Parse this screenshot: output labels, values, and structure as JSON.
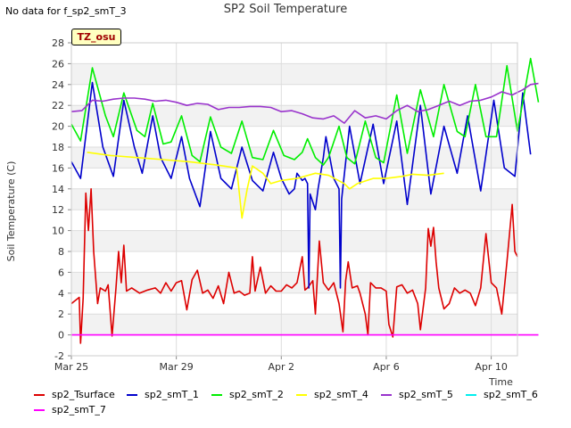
{
  "header": {
    "no_data_text": "No data for f_sp2_smT_3",
    "tz_badge": "TZ_osu"
  },
  "chart_data": {
    "type": "line",
    "title": "SP2 Soil Temperature",
    "xlabel": "Time",
    "ylabel": "Soil Temperature (C)",
    "ylim": [
      -2,
      28
    ],
    "yticks": [
      -2,
      0,
      2,
      4,
      6,
      8,
      10,
      12,
      14,
      16,
      18,
      20,
      22,
      24,
      26,
      28
    ],
    "xlim": [
      0,
      17
    ],
    "xticks": [
      {
        "x": 0,
        "label": "Mar 25"
      },
      {
        "x": 4,
        "label": "Mar 29"
      },
      {
        "x": 8,
        "label": "Apr 2"
      },
      {
        "x": 12,
        "label": "Apr 6"
      },
      {
        "x": 16,
        "label": "Apr 10"
      }
    ],
    "grid": true,
    "legend_position": "bottom",
    "series": [
      {
        "name": "sp2_Tsurface",
        "color": "#dd0000",
        "values": [
          [
            0.0,
            3.0
          ],
          [
            0.3,
            3.6
          ],
          [
            0.35,
            -0.8
          ],
          [
            0.45,
            3.5
          ],
          [
            0.55,
            13.6
          ],
          [
            0.65,
            10.0
          ],
          [
            0.75,
            14.0
          ],
          [
            0.85,
            8.0
          ],
          [
            1.0,
            3.0
          ],
          [
            1.1,
            4.5
          ],
          [
            1.3,
            4.2
          ],
          [
            1.4,
            4.8
          ],
          [
            1.55,
            -0.1
          ],
          [
            1.7,
            4.5
          ],
          [
            1.8,
            8.0
          ],
          [
            1.9,
            5.0
          ],
          [
            2.0,
            8.6
          ],
          [
            2.1,
            4.2
          ],
          [
            2.3,
            4.5
          ],
          [
            2.6,
            4.0
          ],
          [
            2.9,
            4.3
          ],
          [
            3.2,
            4.5
          ],
          [
            3.4,
            4.0
          ],
          [
            3.6,
            5.0
          ],
          [
            3.8,
            4.2
          ],
          [
            4.0,
            5.0
          ],
          [
            4.2,
            5.2
          ],
          [
            4.4,
            2.4
          ],
          [
            4.6,
            5.3
          ],
          [
            4.8,
            6.2
          ],
          [
            5.0,
            4.0
          ],
          [
            5.2,
            4.3
          ],
          [
            5.4,
            3.5
          ],
          [
            5.6,
            4.7
          ],
          [
            5.8,
            3.0
          ],
          [
            6.0,
            6.0
          ],
          [
            6.2,
            4.0
          ],
          [
            6.4,
            4.2
          ],
          [
            6.6,
            3.8
          ],
          [
            6.8,
            4.0
          ],
          [
            6.9,
            7.5
          ],
          [
            7.0,
            4.2
          ],
          [
            7.2,
            6.5
          ],
          [
            7.4,
            4.0
          ],
          [
            7.6,
            4.7
          ],
          [
            7.8,
            4.2
          ],
          [
            8.0,
            4.2
          ],
          [
            8.2,
            4.8
          ],
          [
            8.4,
            4.5
          ],
          [
            8.6,
            5.0
          ],
          [
            8.8,
            7.5
          ],
          [
            8.9,
            4.3
          ],
          [
            9.0,
            4.5
          ],
          [
            9.2,
            5.2
          ],
          [
            9.3,
            2.0
          ],
          [
            9.45,
            9.0
          ],
          [
            9.6,
            5.0
          ],
          [
            9.8,
            4.3
          ],
          [
            10.0,
            5.0
          ],
          [
            10.2,
            3.0
          ],
          [
            10.35,
            0.3
          ],
          [
            10.45,
            5.2
          ],
          [
            10.55,
            7.0
          ],
          [
            10.7,
            4.5
          ],
          [
            10.9,
            4.7
          ],
          [
            11.0,
            4.0
          ],
          [
            11.2,
            2.0
          ],
          [
            11.3,
            0.0
          ],
          [
            11.4,
            5.0
          ],
          [
            11.6,
            4.5
          ],
          [
            11.8,
            4.5
          ],
          [
            12.0,
            4.2
          ],
          [
            12.1,
            1.0
          ],
          [
            12.25,
            -0.2
          ],
          [
            12.4,
            4.6
          ],
          [
            12.6,
            4.8
          ],
          [
            12.8,
            4.0
          ],
          [
            13.0,
            4.3
          ],
          [
            13.2,
            3.0
          ],
          [
            13.3,
            0.5
          ],
          [
            13.5,
            4.5
          ],
          [
            13.6,
            10.2
          ],
          [
            13.7,
            8.5
          ],
          [
            13.8,
            10.3
          ],
          [
            13.9,
            7.0
          ],
          [
            14.0,
            4.5
          ],
          [
            14.2,
            2.5
          ],
          [
            14.4,
            3.0
          ],
          [
            14.6,
            4.5
          ],
          [
            14.8,
            4.0
          ],
          [
            15.0,
            4.3
          ],
          [
            15.2,
            4.0
          ],
          [
            15.4,
            2.8
          ],
          [
            15.6,
            4.5
          ],
          [
            15.8,
            9.7
          ],
          [
            16.0,
            5.0
          ],
          [
            16.2,
            4.5
          ],
          [
            16.4,
            2.0
          ],
          [
            16.6,
            7.0
          ],
          [
            16.8,
            12.5
          ],
          [
            16.9,
            8.0
          ],
          [
            17.0,
            7.5
          ]
        ]
      },
      {
        "name": "sp2_smT_1",
        "color": "#0000cc",
        "values": [
          [
            0.0,
            16.6
          ],
          [
            0.35,
            15.0
          ],
          [
            0.8,
            24.2
          ],
          [
            1.2,
            18.0
          ],
          [
            1.6,
            15.2
          ],
          [
            2.0,
            22.5
          ],
          [
            2.4,
            18.0
          ],
          [
            2.7,
            15.5
          ],
          [
            3.1,
            21.0
          ],
          [
            3.4,
            17.0
          ],
          [
            3.8,
            15.0
          ],
          [
            4.2,
            19.0
          ],
          [
            4.5,
            15.0
          ],
          [
            4.9,
            12.3
          ],
          [
            5.3,
            19.5
          ],
          [
            5.7,
            15.0
          ],
          [
            6.1,
            14.0
          ],
          [
            6.5,
            18.0
          ],
          [
            6.9,
            14.8
          ],
          [
            7.3,
            13.8
          ],
          [
            7.7,
            17.5
          ],
          [
            8.0,
            15.0
          ],
          [
            8.3,
            13.5
          ],
          [
            8.5,
            14.0
          ],
          [
            8.6,
            15.5
          ],
          [
            8.8,
            14.8
          ],
          [
            8.9,
            15.0
          ],
          [
            9.0,
            14.5
          ],
          [
            9.05,
            4.5
          ],
          [
            9.1,
            13.5
          ],
          [
            9.3,
            12.0
          ],
          [
            9.4,
            14.0
          ],
          [
            9.6,
            17.0
          ],
          [
            9.7,
            19.0
          ],
          [
            10.0,
            15.0
          ],
          [
            10.2,
            14.0
          ],
          [
            10.25,
            4.5
          ],
          [
            10.3,
            13.0
          ],
          [
            10.6,
            20.0
          ],
          [
            11.0,
            14.5
          ],
          [
            11.5,
            20.2
          ],
          [
            11.9,
            14.5
          ],
          [
            12.4,
            20.5
          ],
          [
            12.8,
            12.5
          ],
          [
            13.3,
            22.0
          ],
          [
            13.7,
            13.5
          ],
          [
            14.2,
            20.0
          ],
          [
            14.7,
            15.5
          ],
          [
            15.1,
            21.0
          ],
          [
            15.6,
            13.8
          ],
          [
            16.1,
            22.5
          ],
          [
            16.5,
            16.0
          ],
          [
            16.9,
            15.2
          ],
          [
            17.2,
            23.2
          ],
          [
            17.5,
            17.3
          ]
        ]
      },
      {
        "name": "sp2_smT_2",
        "color": "#00ee00",
        "values": [
          [
            0.0,
            20.2
          ],
          [
            0.35,
            18.6
          ],
          [
            0.8,
            25.6
          ],
          [
            1.3,
            21.0
          ],
          [
            1.6,
            19.0
          ],
          [
            2.0,
            23.2
          ],
          [
            2.5,
            19.6
          ],
          [
            2.8,
            19.0
          ],
          [
            3.1,
            22.2
          ],
          [
            3.5,
            18.3
          ],
          [
            3.8,
            18.5
          ],
          [
            4.2,
            21.0
          ],
          [
            4.6,
            17.2
          ],
          [
            4.9,
            16.6
          ],
          [
            5.3,
            20.9
          ],
          [
            5.7,
            18.0
          ],
          [
            6.1,
            17.4
          ],
          [
            6.5,
            20.5
          ],
          [
            6.9,
            17.0
          ],
          [
            7.3,
            16.8
          ],
          [
            7.7,
            19.6
          ],
          [
            8.1,
            17.2
          ],
          [
            8.5,
            16.8
          ],
          [
            8.8,
            17.5
          ],
          [
            9.0,
            18.8
          ],
          [
            9.3,
            17.0
          ],
          [
            9.6,
            16.3
          ],
          [
            9.8,
            17.0
          ],
          [
            10.2,
            20.0
          ],
          [
            10.5,
            17.0
          ],
          [
            10.8,
            16.4
          ],
          [
            11.2,
            20.5
          ],
          [
            11.6,
            17.0
          ],
          [
            11.9,
            16.5
          ],
          [
            12.4,
            23.0
          ],
          [
            12.8,
            17.4
          ],
          [
            13.3,
            23.5
          ],
          [
            13.8,
            19.0
          ],
          [
            14.2,
            24.0
          ],
          [
            14.7,
            19.5
          ],
          [
            15.0,
            19.0
          ],
          [
            15.4,
            24.0
          ],
          [
            15.8,
            19.0
          ],
          [
            16.2,
            19.0
          ],
          [
            16.6,
            25.8
          ],
          [
            17.0,
            19.5
          ],
          [
            17.5,
            26.5
          ],
          [
            17.8,
            22.3
          ]
        ]
      },
      {
        "name": "sp2_smT_4",
        "color": "#ffff00",
        "values": [
          [
            0.6,
            17.5
          ],
          [
            1.5,
            17.2
          ],
          [
            2.5,
            17.0
          ],
          [
            3.5,
            16.8
          ],
          [
            4.5,
            16.6
          ],
          [
            5.5,
            16.3
          ],
          [
            6.3,
            16.0
          ],
          [
            6.5,
            11.2
          ],
          [
            6.7,
            14.0
          ],
          [
            6.9,
            16.2
          ],
          [
            7.3,
            15.5
          ],
          [
            7.6,
            14.5
          ],
          [
            8.0,
            14.8
          ],
          [
            8.6,
            15.0
          ],
          [
            9.3,
            15.5
          ],
          [
            9.8,
            15.3
          ],
          [
            10.4,
            14.5
          ],
          [
            10.6,
            14.0
          ],
          [
            10.9,
            14.5
          ],
          [
            11.5,
            15.0
          ],
          [
            12.0,
            15.0
          ],
          [
            12.6,
            15.2
          ],
          [
            13.0,
            15.4
          ],
          [
            13.6,
            15.3
          ],
          [
            14.2,
            15.5
          ]
        ]
      },
      {
        "name": "sp2_smT_5",
        "color": "#9933cc",
        "values": [
          [
            0.0,
            21.4
          ],
          [
            0.4,
            21.5
          ],
          [
            0.8,
            22.5
          ],
          [
            1.2,
            22.4
          ],
          [
            1.6,
            22.6
          ],
          [
            2.0,
            22.7
          ],
          [
            2.4,
            22.7
          ],
          [
            2.8,
            22.6
          ],
          [
            3.2,
            22.4
          ],
          [
            3.6,
            22.5
          ],
          [
            4.0,
            22.3
          ],
          [
            4.4,
            22.0
          ],
          [
            4.8,
            22.2
          ],
          [
            5.2,
            22.1
          ],
          [
            5.6,
            21.6
          ],
          [
            6.0,
            21.8
          ],
          [
            6.4,
            21.8
          ],
          [
            6.8,
            21.9
          ],
          [
            7.2,
            21.9
          ],
          [
            7.6,
            21.8
          ],
          [
            8.0,
            21.4
          ],
          [
            8.4,
            21.5
          ],
          [
            8.8,
            21.2
          ],
          [
            9.2,
            20.8
          ],
          [
            9.6,
            20.7
          ],
          [
            10.0,
            21.0
          ],
          [
            10.4,
            20.3
          ],
          [
            10.8,
            21.5
          ],
          [
            11.2,
            20.8
          ],
          [
            11.6,
            21.0
          ],
          [
            12.0,
            20.7
          ],
          [
            12.4,
            21.5
          ],
          [
            12.8,
            22.0
          ],
          [
            13.2,
            21.4
          ],
          [
            13.6,
            21.6
          ],
          [
            14.0,
            22.0
          ],
          [
            14.4,
            22.4
          ],
          [
            14.8,
            22.0
          ],
          [
            15.2,
            22.4
          ],
          [
            15.6,
            22.5
          ],
          [
            16.0,
            22.8
          ],
          [
            16.4,
            23.3
          ],
          [
            16.8,
            23.0
          ],
          [
            17.2,
            23.5
          ],
          [
            17.5,
            24.0
          ],
          [
            17.8,
            24.1
          ]
        ]
      },
      {
        "name": "sp2_smT_6",
        "color": "#00eeee",
        "values": []
      },
      {
        "name": "sp2_smT_7",
        "color": "#ff00ff",
        "values": [
          [
            0.0,
            0.0
          ],
          [
            17.8,
            0.0
          ]
        ]
      }
    ]
  }
}
